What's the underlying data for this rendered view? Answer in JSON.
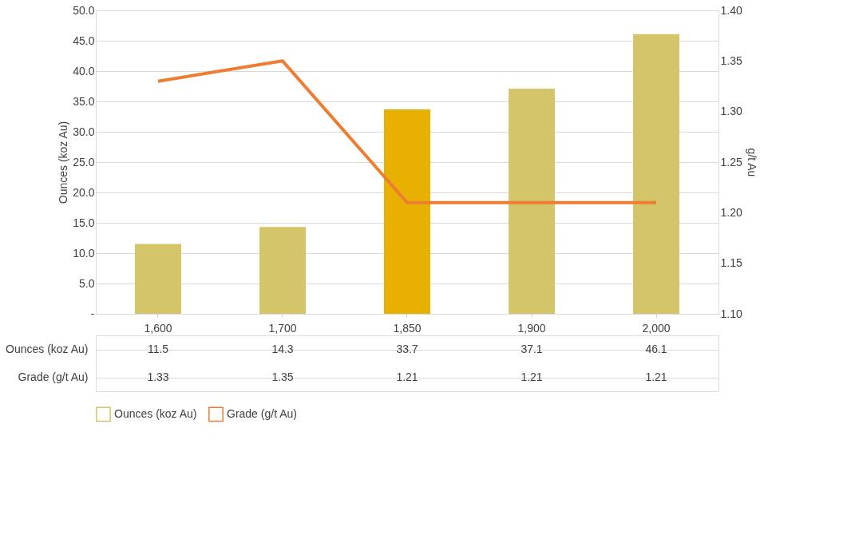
{
  "chart_data": {
    "type": "bar",
    "ylabel": "Ounces (koz Au)",
    "y2label": "g/t Au",
    "categories": [
      "1,600",
      "1,700",
      "1,850",
      "1,900",
      "2,000"
    ],
    "series": [
      {
        "name": "Ounces (koz Au)",
        "color": "#d4c46a",
        "colors": [
          "#d4c46a",
          "#d4c46a",
          "#e8b000",
          "#d4c46a",
          "#d4c46a"
        ],
        "values": [
          11.5,
          14.3,
          33.7,
          37.1,
          46.1
        ]
      },
      {
        "name": "Grade (g/t Au)",
        "type": "line",
        "axis": "y2",
        "color": "#ed7d31",
        "values": [
          1.33,
          1.35,
          1.21,
          1.21,
          1.21
        ]
      }
    ],
    "ylim": [
      0,
      50
    ],
    "yticks": [
      {
        "value": 0,
        "label": "-"
      },
      {
        "value": 5,
        "label": "5.0"
      },
      {
        "value": 10,
        "label": "10.0"
      },
      {
        "value": 15,
        "label": "15.0"
      },
      {
        "value": 20,
        "label": "20.0"
      },
      {
        "value": 25,
        "label": "25.0"
      },
      {
        "value": 30,
        "label": "30.0"
      },
      {
        "value": 35,
        "label": "35.0"
      },
      {
        "value": 40,
        "label": "40.0"
      },
      {
        "value": 45,
        "label": "45.0"
      },
      {
        "value": 50,
        "label": "50.0"
      }
    ],
    "y2lim": [
      1.1,
      1.4
    ],
    "y2ticks": [
      {
        "value": 1.1,
        "label": "1.10"
      },
      {
        "value": 1.15,
        "label": "1.15"
      },
      {
        "value": 1.2,
        "label": "1.20"
      },
      {
        "value": 1.25,
        "label": "1.25"
      },
      {
        "value": 1.3,
        "label": "1.30"
      },
      {
        "value": 1.35,
        "label": "1.35"
      },
      {
        "value": 1.4,
        "label": "1.40"
      }
    ],
    "grid": "y",
    "legend": "bottom",
    "data_labels": true,
    "line_style": "solid",
    "marker": "none"
  }
}
